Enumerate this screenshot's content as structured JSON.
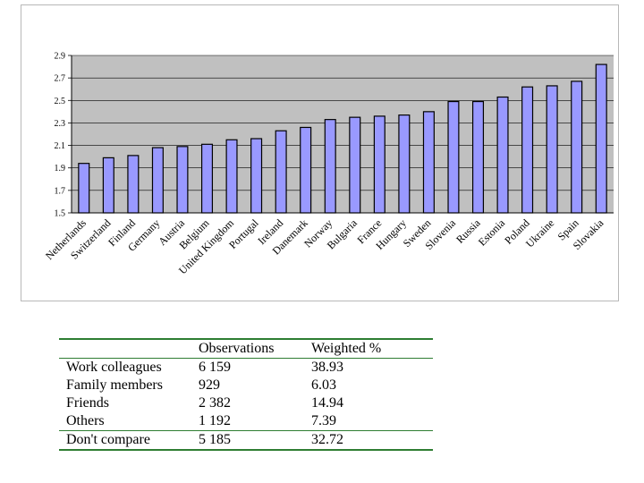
{
  "chart_data": {
    "type": "bar",
    "title": "",
    "xlabel": "",
    "ylabel": "",
    "ylim": [
      1.5,
      2.9
    ],
    "yticks": [
      "1.5",
      "1.7",
      "1.9",
      "2.1",
      "2.3",
      "2.5",
      "2.7",
      "2.9"
    ],
    "grid": "horizontal",
    "categories": [
      "Netherlands",
      "Switzerland",
      "Finland",
      "Germany",
      "Austria",
      "Belgium",
      "United Kingdom",
      "Portugal",
      "Ireland",
      "Danemark",
      "Norway",
      "Bulgaria",
      "France",
      "Hungary",
      "Sweden",
      "Slovenia",
      "Russia",
      "Estonia",
      "Poland",
      "Ukraine",
      "Spain",
      "Slovakia"
    ],
    "values": [
      1.94,
      1.99,
      2.01,
      2.08,
      2.09,
      2.11,
      2.15,
      2.16,
      2.23,
      2.26,
      2.33,
      2.35,
      2.36,
      2.37,
      2.4,
      2.49,
      2.49,
      2.53,
      2.62,
      2.63,
      2.67,
      2.82
    ],
    "colors": {
      "bar": "#9999ff",
      "plot_bg": "#c0c0c0",
      "border": "#000000"
    }
  },
  "table": {
    "headers": [
      "",
      "Observations",
      "Weighted %"
    ],
    "rows": [
      [
        "Work colleagues",
        "6 159",
        "38.93"
      ],
      [
        "Family members",
        "929",
        "6.03"
      ],
      [
        "Friends",
        "2 382",
        "14.94"
      ],
      [
        "Others",
        "1 192",
        "7.39"
      ],
      [
        "Don't compare",
        "5 185",
        "32.72"
      ]
    ],
    "rule_color": "#2e7d32"
  }
}
